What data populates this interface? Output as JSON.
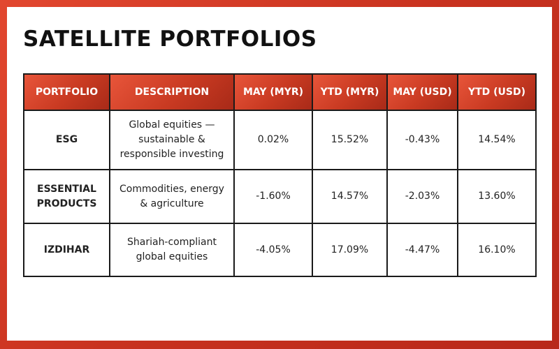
{
  "title": "SATELLITE PORTFOLIOS",
  "table": {
    "headers": [
      "PORTFOLIO",
      "DESCRIPTION",
      "MAY (MYR)",
      "YTD (MYR)",
      "MAY (USD)",
      "YTD (USD)"
    ],
    "rows": [
      {
        "portfolio": "ESG",
        "description": "Global equities — sustainable & responsible investing",
        "may_myr": "0.02%",
        "ytd_myr": "15.52%",
        "may_usd": "-0.43%",
        "ytd_usd": "14.54%"
      },
      {
        "portfolio": "ESSENTIAL PRODUCTS",
        "description": "Commodities, energy & agriculture",
        "may_myr": "-1.60%",
        "ytd_myr": "14.57%",
        "may_usd": "-2.03%",
        "ytd_usd": "13.60%"
      },
      {
        "portfolio": "IZDIHAR",
        "description": "Shariah-compliant global equities",
        "may_myr": "-4.05%",
        "ytd_myr": "17.09%",
        "may_usd": "-4.47%",
        "ytd_usd": "16.10%"
      }
    ]
  },
  "colors": {
    "background_red": "#d23a24",
    "header_red": "#c93a22",
    "positive_green": "#2e8b57",
    "negative_red": "#e0403a"
  }
}
